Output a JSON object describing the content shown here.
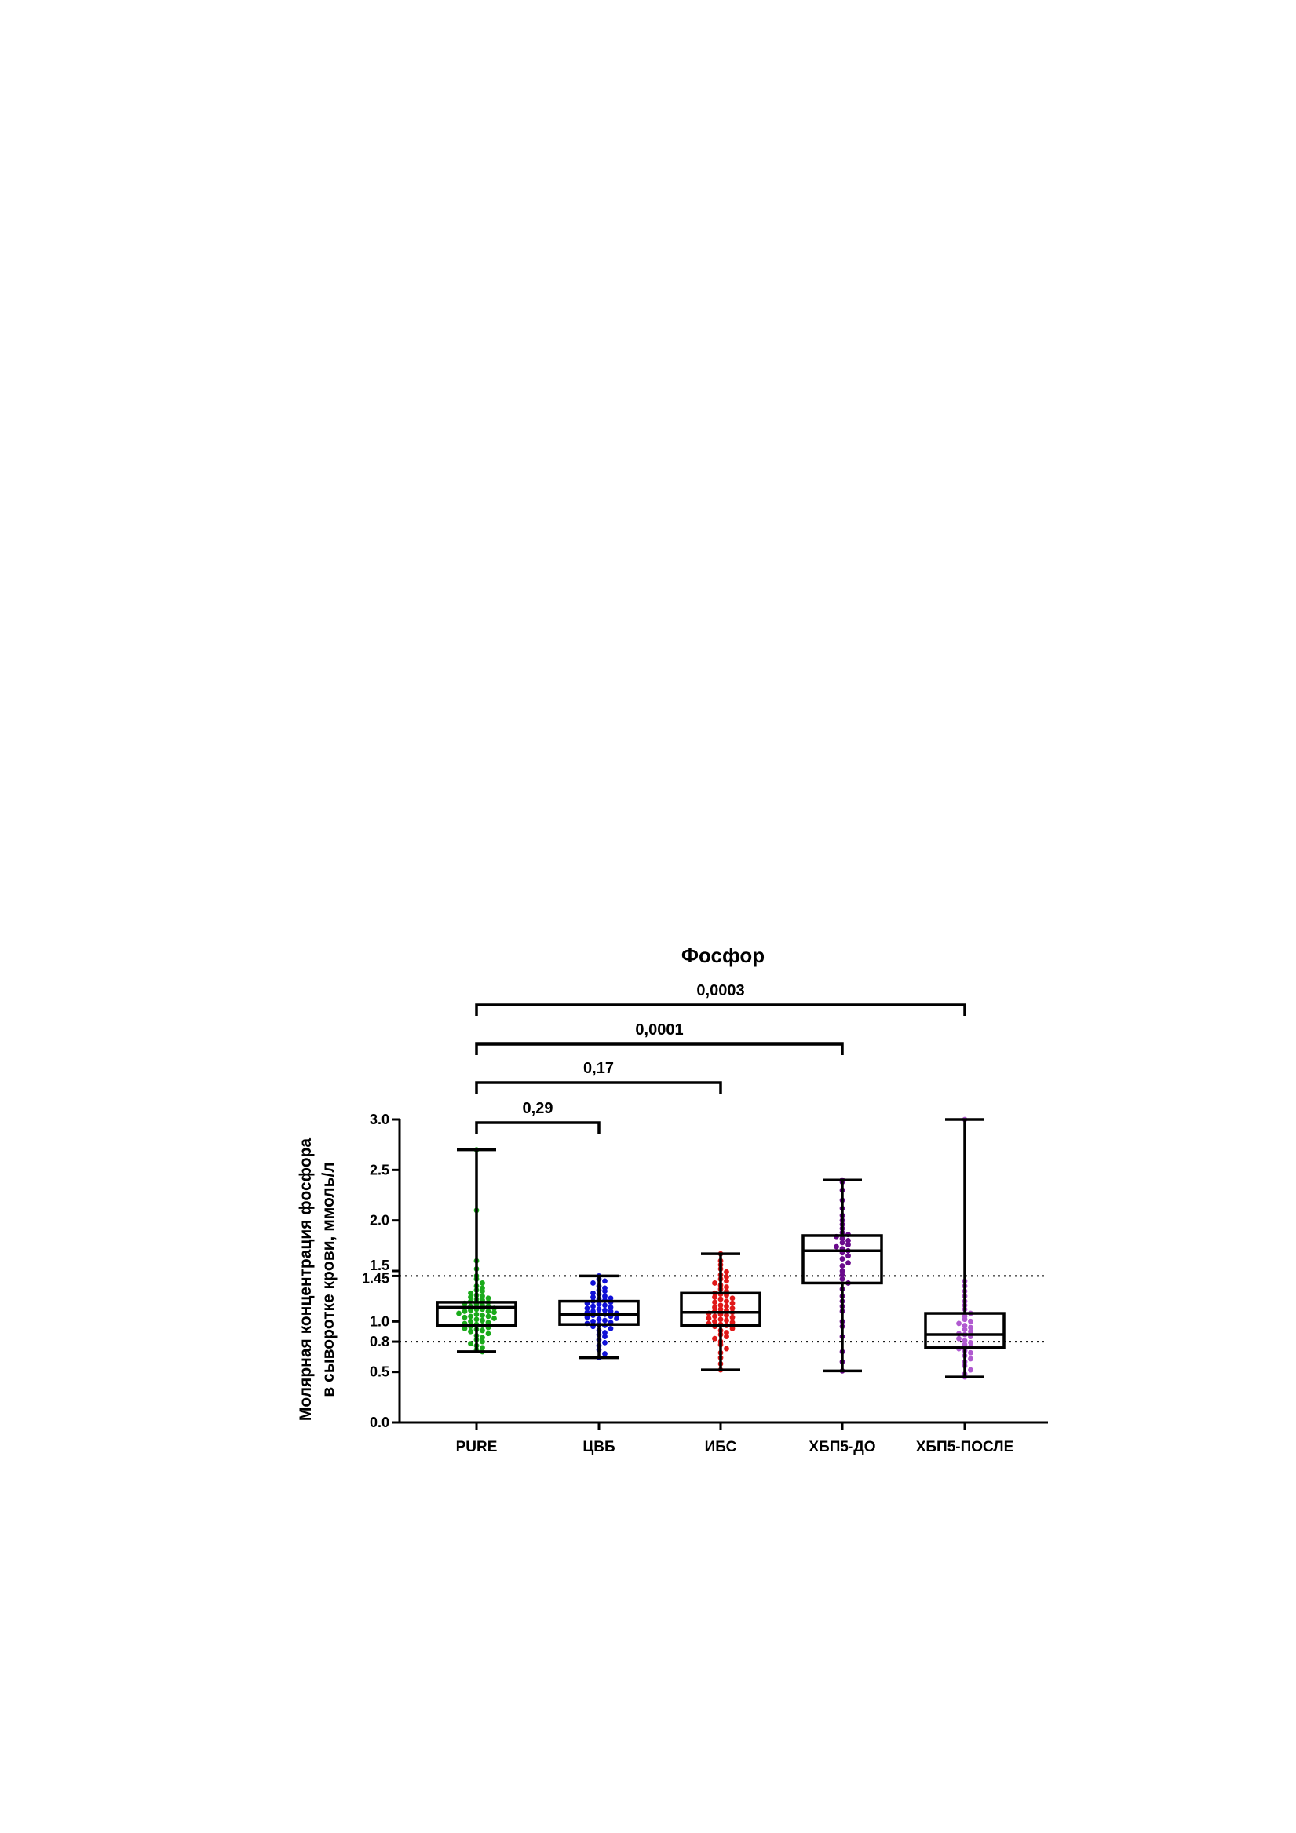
{
  "chart_data": {
    "type": "box",
    "title": "Фосфор",
    "ylabel_lines": [
      "Молярная концентрация фосфора",
      "в сыворотке крови, ммоль/л"
    ],
    "xlabel": "",
    "ylim": [
      0,
      3.0
    ],
    "y_ticks": [
      {
        "value": 0.0,
        "label": "0.0"
      },
      {
        "value": 0.5,
        "label": "0.5"
      },
      {
        "value": 0.8,
        "label": "0.8"
      },
      {
        "value": 1.0,
        "label": "1.0"
      },
      {
        "value": 1.45,
        "label": "1.45"
      },
      {
        "value": 1.5,
        "label": "1.5"
      },
      {
        "value": 2.0,
        "label": "2.0"
      },
      {
        "value": 2.5,
        "label": "2.5"
      },
      {
        "value": 3.0,
        "label": "3.0"
      }
    ],
    "reference_lines": [
      0.8,
      1.45
    ],
    "categories": [
      "PURE",
      "ЦВБ",
      "ИБС",
      "ХБП5-ДО",
      "ХБП5-ПОСЛЕ"
    ],
    "series": [
      {
        "category": "PURE",
        "color": "#1aaa1a",
        "whisker_low": 0.7,
        "q1": 0.96,
        "median": 1.14,
        "q3": 1.19,
        "whisker_high": 2.7,
        "points": [
          2.7,
          2.1,
          1.6,
          1.52,
          1.45,
          1.42,
          1.38,
          1.35,
          1.33,
          1.31,
          1.3,
          1.28,
          1.26,
          1.25,
          1.24,
          1.23,
          1.22,
          1.21,
          1.2,
          1.19,
          1.18,
          1.17,
          1.16,
          1.15,
          1.15,
          1.14,
          1.13,
          1.12,
          1.12,
          1.11,
          1.1,
          1.1,
          1.09,
          1.08,
          1.07,
          1.06,
          1.05,
          1.05,
          1.04,
          1.03,
          1.02,
          1.01,
          1.0,
          0.99,
          0.98,
          0.97,
          0.96,
          0.95,
          0.94,
          0.93,
          0.92,
          0.91,
          0.9,
          0.88,
          0.86,
          0.84,
          0.82,
          0.8,
          0.78,
          0.76,
          0.74,
          0.72,
          0.7
        ]
      },
      {
        "category": "ЦВБ",
        "color": "#1010d8",
        "whisker_low": 0.64,
        "q1": 0.97,
        "median": 1.07,
        "q3": 1.2,
        "whisker_high": 1.45,
        "points": [
          1.45,
          1.42,
          1.4,
          1.38,
          1.35,
          1.33,
          1.31,
          1.3,
          1.28,
          1.27,
          1.25,
          1.24,
          1.23,
          1.22,
          1.21,
          1.2,
          1.19,
          1.18,
          1.17,
          1.16,
          1.15,
          1.14,
          1.13,
          1.12,
          1.11,
          1.1,
          1.1,
          1.09,
          1.08,
          1.07,
          1.07,
          1.06,
          1.05,
          1.04,
          1.03,
          1.02,
          1.01,
          1.0,
          0.99,
          0.98,
          0.97,
          0.96,
          0.95,
          0.93,
          0.91,
          0.89,
          0.87,
          0.85,
          0.82,
          0.79,
          0.76,
          0.72,
          0.68,
          0.64
        ]
      },
      {
        "category": "ИБС",
        "color": "#e01818",
        "whisker_low": 0.52,
        "q1": 0.96,
        "median": 1.09,
        "q3": 1.28,
        "whisker_high": 1.67,
        "points": [
          1.67,
          1.6,
          1.56,
          1.52,
          1.49,
          1.46,
          1.44,
          1.42,
          1.4,
          1.38,
          1.36,
          1.34,
          1.32,
          1.3,
          1.28,
          1.27,
          1.26,
          1.24,
          1.23,
          1.22,
          1.2,
          1.19,
          1.18,
          1.16,
          1.15,
          1.14,
          1.13,
          1.12,
          1.11,
          1.1,
          1.09,
          1.08,
          1.07,
          1.06,
          1.05,
          1.04,
          1.03,
          1.02,
          1.01,
          1.0,
          0.99,
          0.98,
          0.97,
          0.96,
          0.95,
          0.93,
          0.91,
          0.89,
          0.87,
          0.85,
          0.83,
          0.8,
          0.77,
          0.73,
          0.69,
          0.64,
          0.58,
          0.52
        ]
      },
      {
        "category": "ХБП5-ДО",
        "color": "#6a0a8c",
        "whisker_low": 0.51,
        "q1": 1.38,
        "median": 1.7,
        "q3": 1.85,
        "whisker_high": 2.4,
        "points": [
          2.4,
          2.38,
          2.3,
          2.2,
          2.12,
          2.05,
          2.0,
          1.96,
          1.92,
          1.88,
          1.86,
          1.84,
          1.82,
          1.8,
          1.78,
          1.76,
          1.74,
          1.72,
          1.7,
          1.68,
          1.65,
          1.62,
          1.58,
          1.55,
          1.5,
          1.46,
          1.42,
          1.38,
          1.32,
          1.25,
          1.2,
          1.15,
          1.1,
          1.0,
          0.95,
          0.85,
          0.7,
          0.6,
          0.51
        ]
      },
      {
        "category": "ХБП5-ПОСЛЕ",
        "color": "#b05ad0",
        "whisker_low": 0.45,
        "q1": 0.74,
        "median": 0.87,
        "q3": 1.08,
        "whisker_high": 3.0,
        "points": [
          3.0,
          1.4,
          1.35,
          1.3,
          1.25,
          1.2,
          1.16,
          1.12,
          1.08,
          1.05,
          1.02,
          1.0,
          0.98,
          0.96,
          0.94,
          0.92,
          0.9,
          0.88,
          0.87,
          0.85,
          0.83,
          0.81,
          0.79,
          0.77,
          0.75,
          0.73,
          0.71,
          0.69,
          0.66,
          0.63,
          0.6,
          0.56,
          0.52,
          0.48,
          0.45
        ]
      }
    ],
    "brackets": [
      {
        "from": "PURE",
        "to": "ЦВБ",
        "label": "0,29"
      },
      {
        "from": "PURE",
        "to": "ИБС",
        "label": "0,17"
      },
      {
        "from": "PURE",
        "to": "ХБП5-ДО",
        "label": "0,0001"
      },
      {
        "from": "PURE",
        "to": "ХБП5-ПОСЛЕ",
        "label": "0,0003"
      }
    ]
  }
}
